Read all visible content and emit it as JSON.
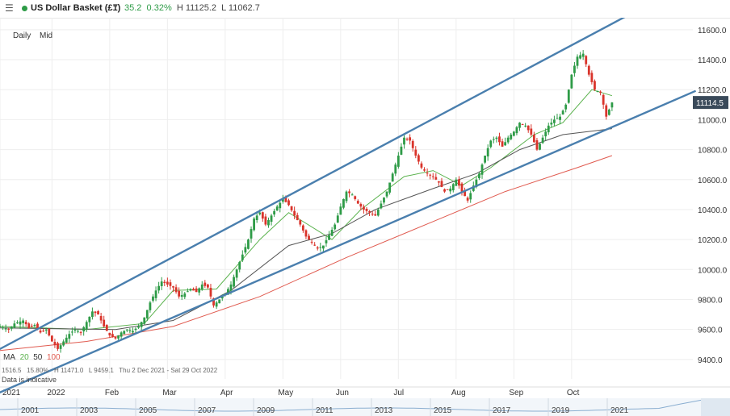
{
  "header": {
    "menu_icon": "☰",
    "instrument": "US Dollar Basket (£1)",
    "caret": "▼",
    "change": "35.2",
    "change_pct": "0.32%",
    "high": "H 11125.2",
    "low": "L 11062.7",
    "status_color": "#2e9b47"
  },
  "toolbar": {
    "interval": "Daily",
    "price_type": "Mid"
  },
  "legend": {
    "ma_label": "MA",
    "ma20": "20",
    "ma50": "50",
    "ma100": "100",
    "ma20_color": "#5ab24d",
    "ma50_color": "#555555",
    "ma100_color": "#e05a4f"
  },
  "info": {
    "stats": "1516.5   15.80%   H 11471.0   L 9459.1   Thu 2 Dec 2021 - Sat 29 Oct 2022",
    "disclaimer": "Data is indicative"
  },
  "price_box": "11114.5",
  "navigator": {
    "years": [
      "2001",
      "2003",
      "2005",
      "2007",
      "2009",
      "2011",
      "2013",
      "2015",
      "2017",
      "2019",
      "2021"
    ]
  },
  "chart_data": {
    "type": "candlestick",
    "title": "US Dollar Basket (£1)",
    "interval": "Daily",
    "x_range": [
      "2021-12-02",
      "2022-10-29"
    ],
    "x_tick_labels": [
      "2021",
      "2022",
      "Feb",
      "Mar",
      "Apr",
      "May",
      "Jun",
      "Jul",
      "Aug",
      "Sep",
      "Oct"
    ],
    "y_tick_labels": [
      "9400.0",
      "9600.0",
      "9800.0",
      "10000.0",
      "10200.0",
      "10400.0",
      "10600.0",
      "10800.0",
      "11000.0",
      "11200.0",
      "11400.0",
      "11600.0"
    ],
    "ylim": [
      9270,
      11680
    ],
    "grid": true,
    "last_price": 11114.5,
    "up_color": "#2e9b47",
    "down_color": "#d9342b",
    "price_path": [
      [
        0,
        9620
      ],
      [
        3,
        9600
      ],
      [
        5,
        9640
      ],
      [
        8,
        9660
      ],
      [
        10,
        9610
      ],
      [
        12,
        9630
      ],
      [
        14,
        9580
      ],
      [
        16,
        9600
      ],
      [
        18,
        9520
      ],
      [
        20,
        9470
      ],
      [
        22,
        9520
      ],
      [
        24,
        9570
      ],
      [
        26,
        9600
      ],
      [
        28,
        9580
      ],
      [
        30,
        9650
      ],
      [
        32,
        9720
      ],
      [
        34,
        9700
      ],
      [
        36,
        9620
      ],
      [
        38,
        9560
      ],
      [
        40,
        9540
      ],
      [
        42,
        9580
      ],
      [
        44,
        9600
      ],
      [
        46,
        9590
      ],
      [
        48,
        9620
      ],
      [
        50,
        9680
      ],
      [
        52,
        9780
      ],
      [
        54,
        9860
      ],
      [
        56,
        9920
      ],
      [
        58,
        9900
      ],
      [
        60,
        9880
      ],
      [
        62,
        9820
      ],
      [
        64,
        9840
      ],
      [
        66,
        9870
      ],
      [
        68,
        9850
      ],
      [
        70,
        9900
      ],
      [
        72,
        9880
      ],
      [
        74,
        9760
      ],
      [
        76,
        9800
      ],
      [
        78,
        9840
      ],
      [
        80,
        9900
      ],
      [
        82,
        10000
      ],
      [
        84,
        10100
      ],
      [
        86,
        10200
      ],
      [
        88,
        10340
      ],
      [
        90,
        10380
      ],
      [
        92,
        10300
      ],
      [
        94,
        10360
      ],
      [
        96,
        10420
      ],
      [
        98,
        10470
      ],
      [
        100,
        10430
      ],
      [
        102,
        10360
      ],
      [
        104,
        10300
      ],
      [
        106,
        10220
      ],
      [
        108,
        10180
      ],
      [
        110,
        10140
      ],
      [
        112,
        10160
      ],
      [
        114,
        10230
      ],
      [
        116,
        10300
      ],
      [
        118,
        10420
      ],
      [
        120,
        10520
      ],
      [
        122,
        10500
      ],
      [
        124,
        10440
      ],
      [
        126,
        10400
      ],
      [
        128,
        10380
      ],
      [
        130,
        10360
      ],
      [
        132,
        10440
      ],
      [
        134,
        10520
      ],
      [
        136,
        10640
      ],
      [
        138,
        10760
      ],
      [
        140,
        10880
      ],
      [
        142,
        10860
      ],
      [
        144,
        10760
      ],
      [
        146,
        10680
      ],
      [
        148,
        10640
      ],
      [
        150,
        10620
      ],
      [
        152,
        10580
      ],
      [
        154,
        10520
      ],
      [
        156,
        10540
      ],
      [
        158,
        10600
      ],
      [
        160,
        10520
      ],
      [
        162,
        10460
      ],
      [
        164,
        10560
      ],
      [
        166,
        10640
      ],
      [
        168,
        10760
      ],
      [
        170,
        10860
      ],
      [
        172,
        10880
      ],
      [
        174,
        10820
      ],
      [
        176,
        10880
      ],
      [
        178,
        10920
      ],
      [
        180,
        10980
      ],
      [
        182,
        10960
      ],
      [
        184,
        10900
      ],
      [
        186,
        10800
      ],
      [
        188,
        10880
      ],
      [
        190,
        10960
      ],
      [
        192,
        11000
      ],
      [
        194,
        11020
      ],
      [
        196,
        11100
      ],
      [
        198,
        11300
      ],
      [
        200,
        11420
      ],
      [
        202,
        11440
      ],
      [
        204,
        11300
      ],
      [
        206,
        11200
      ],
      [
        208,
        11180
      ],
      [
        210,
        11020
      ],
      [
        212,
        11114.5
      ]
    ],
    "series": [
      {
        "name": "MA 20",
        "color": "#5ab24d",
        "values": [
          [
            0,
            9620
          ],
          [
            30,
            9600
          ],
          [
            50,
            9640
          ],
          [
            60,
            9860
          ],
          [
            75,
            9870
          ],
          [
            90,
            10200
          ],
          [
            100,
            10380
          ],
          [
            115,
            10200
          ],
          [
            125,
            10400
          ],
          [
            140,
            10620
          ],
          [
            150,
            10660
          ],
          [
            160,
            10560
          ],
          [
            170,
            10680
          ],
          [
            185,
            10900
          ],
          [
            195,
            10980
          ],
          [
            205,
            11200
          ],
          [
            212,
            11160
          ]
        ]
      },
      {
        "name": "MA 50",
        "color": "#555555",
        "values": [
          [
            0,
            9610
          ],
          [
            40,
            9600
          ],
          [
            60,
            9660
          ],
          [
            80,
            9860
          ],
          [
            100,
            10160
          ],
          [
            115,
            10240
          ],
          [
            130,
            10400
          ],
          [
            150,
            10540
          ],
          [
            165,
            10640
          ],
          [
            180,
            10800
          ],
          [
            195,
            10900
          ],
          [
            212,
            10940
          ]
        ]
      },
      {
        "name": "MA 100",
        "color": "#e05a4f",
        "values": [
          [
            0,
            9460
          ],
          [
            30,
            9520
          ],
          [
            60,
            9620
          ],
          [
            90,
            9820
          ],
          [
            120,
            10080
          ],
          [
            150,
            10320
          ],
          [
            175,
            10520
          ],
          [
            200,
            10680
          ],
          [
            212,
            10760
          ]
        ]
      }
    ],
    "trendlines": [
      {
        "from": [
          0,
          9470
        ],
        "to": [
          212,
          11640
        ]
      },
      {
        "from": [
          0,
          9180
        ],
        "to": [
          212,
          10950
        ]
      }
    ]
  }
}
